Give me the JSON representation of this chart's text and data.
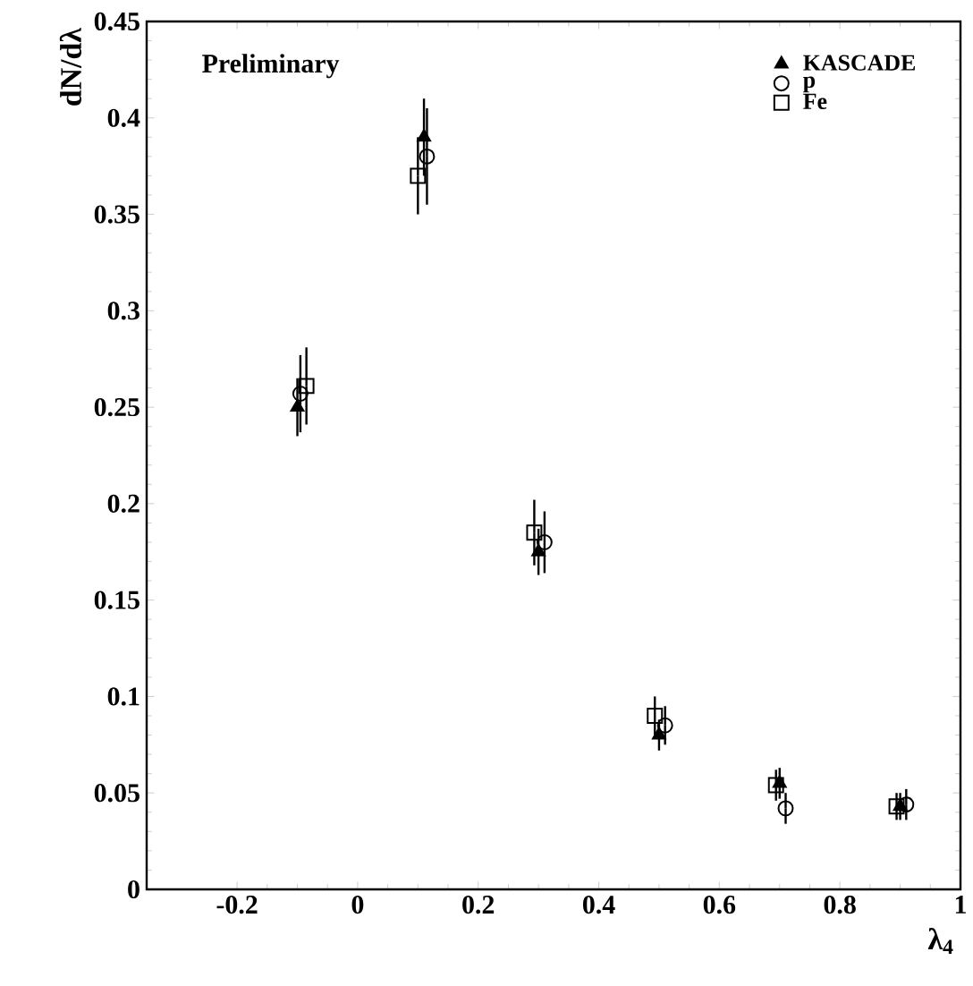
{
  "chart_data": {
    "type": "scatter",
    "xlabel": "λ$_{4}$",
    "ylabel": "dN/dλ",
    "annotations": [
      "Preliminary"
    ],
    "xlim": [
      -0.35,
      1
    ],
    "ylim": [
      0,
      0.45
    ],
    "xticks": [
      -0.2,
      0,
      0.2,
      0.4,
      0.6,
      0.8,
      1
    ],
    "yticks": [
      0,
      0.05,
      0.1,
      0.15,
      0.2,
      0.25,
      0.3,
      0.35,
      0.4,
      0.45
    ],
    "legend": "top right",
    "grid": false,
    "series": [
      {
        "name": "KASCADE",
        "color": "#000000",
        "marker": "triangle",
        "x": [
          -0.1,
          0.11,
          0.3,
          0.5,
          0.7,
          0.9
        ],
        "values": [
          0.25,
          0.39,
          0.175,
          0.08,
          0.055,
          0.043
        ],
        "errors": [
          0.015,
          0.02,
          0.012,
          0.008,
          0.008,
          0.007
        ]
      },
      {
        "name": "p",
        "color": "#000000",
        "marker": "circle",
        "x": [
          -0.095,
          0.115,
          0.31,
          0.51,
          0.71,
          0.91
        ],
        "values": [
          0.257,
          0.38,
          0.18,
          0.085,
          0.042,
          0.044
        ],
        "errors": [
          0.02,
          0.025,
          0.016,
          0.01,
          0.008,
          0.008
        ]
      },
      {
        "name": "Fe",
        "color": "#000000",
        "marker": "square",
        "x": [
          -0.085,
          0.1,
          0.293,
          0.493,
          0.694,
          0.894
        ],
        "values": [
          0.261,
          0.37,
          0.185,
          0.09,
          0.054,
          0.043
        ],
        "errors": [
          0.02,
          0.02,
          0.017,
          0.01,
          0.008,
          0.007
        ]
      }
    ]
  }
}
